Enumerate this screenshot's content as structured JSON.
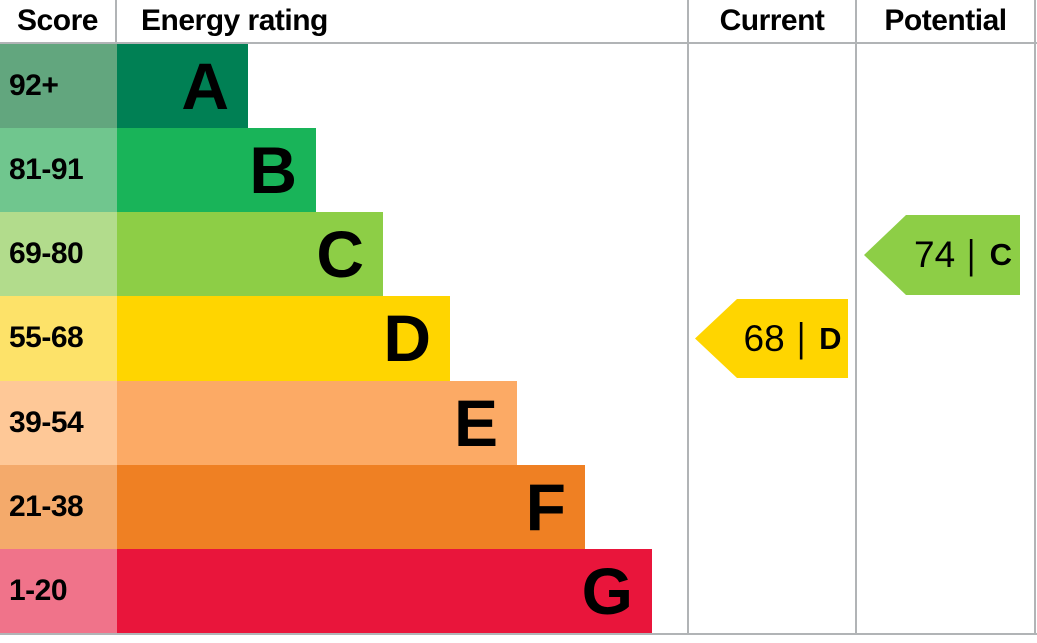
{
  "header": {
    "score": "Score",
    "energy_rating": "Energy rating",
    "current": "Current",
    "potential": "Potential"
  },
  "colors": {
    "border": "#b1b4b6",
    "text": "#000000"
  },
  "chart_data": {
    "type": "bar",
    "subtype": "epc-energy-rating-chart",
    "orientation": "horizontal",
    "legend_position": "none",
    "grid": false,
    "categories": [
      "A",
      "B",
      "C",
      "D",
      "E",
      "F",
      "G"
    ],
    "bands": [
      {
        "letter": "A",
        "range": "92+",
        "color": "#008054",
        "score_bg": "#62a67e"
      },
      {
        "letter": "B",
        "range": "81-91",
        "color": "#19b459",
        "score_bg": "#70c68e"
      },
      {
        "letter": "C",
        "range": "69-80",
        "color": "#8dce46",
        "score_bg": "#b2dc8c"
      },
      {
        "letter": "D",
        "range": "55-68",
        "color": "#ffd500",
        "score_bg": "#fde269"
      },
      {
        "letter": "E",
        "range": "39-54",
        "color": "#fcaa65",
        "score_bg": "#fec897"
      },
      {
        "letter": "F",
        "range": "21-38",
        "color": "#ef8023",
        "score_bg": "#f4aa6b"
      },
      {
        "letter": "G",
        "range": "1-20",
        "color": "#e9153b",
        "score_bg": "#f0738a"
      }
    ],
    "current": {
      "score": "68",
      "separator": "|",
      "rating": "D",
      "band_color": "#ffd500"
    },
    "potential": {
      "score": "74",
      "separator": "|",
      "rating": "C",
      "band_color": "#8dce46"
    }
  }
}
